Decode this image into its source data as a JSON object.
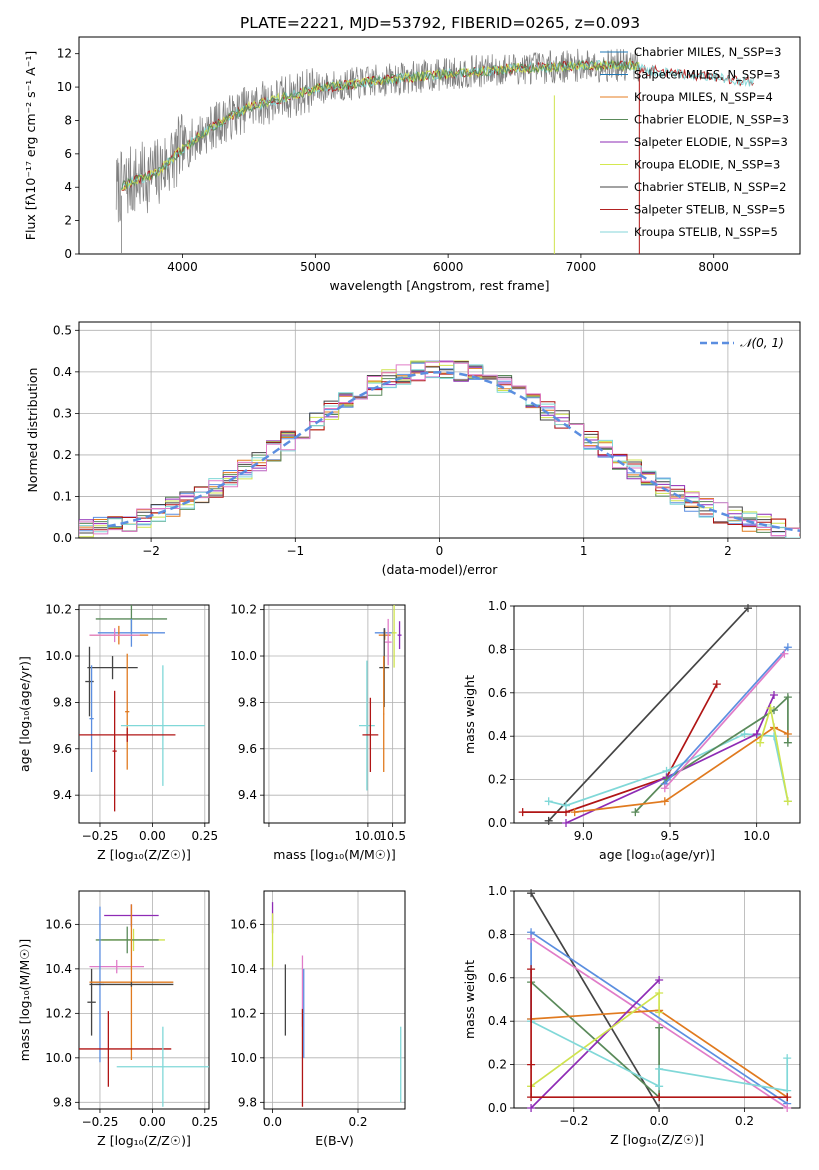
{
  "figure_title": "PLATE=2221, MJD=53792, FIBERID=0265, z=0.093",
  "series_legend": [
    {
      "name": "Chabrier MILES, N_SSP=3",
      "color": "#1f77b4"
    },
    {
      "name": "Salpeter MILES, N_SSP=3",
      "color": "#1f77b4"
    },
    {
      "name": "Kroupa MILES, N_SSP=4",
      "color": "#e67e22"
    },
    {
      "name": "Chabrier ELODIE, N_SSP=3",
      "color": "#5a8a5a"
    },
    {
      "name": "Salpeter ELODIE, N_SSP=3",
      "color": "#8e2bb5"
    },
    {
      "name": "Kroupa ELODIE, N_SSP=3",
      "color": "#d4e84f"
    },
    {
      "name": "Chabrier STELIB, N_SSP=2",
      "color": "#444444"
    },
    {
      "name": "Salpeter STELIB, N_SSP=5",
      "color": "#b22222"
    },
    {
      "name": "Kroupa STELIB, N_SSP=5",
      "color": "#85d5d8"
    }
  ],
  "colors": {
    "blue": "#5b8ee0",
    "orange": "#e07a1f",
    "green": "#5a8a5a",
    "purple": "#8e2bb5",
    "yellow": "#cfe34f",
    "dark": "#444444",
    "red": "#b01515",
    "cyan": "#80d8d8",
    "pink": "#e07cc8",
    "gray": "#7f7f7f",
    "normal": "#5b8ee0"
  },
  "chart_data": [
    {
      "type": "line",
      "title": "PLATE=2221, MJD=53792, FIBERID=0265, z=0.093",
      "xlabel": "wavelength [Angstrom, rest frame]",
      "ylabel": "Flux [fλ10⁻¹⁷ erg cm⁻² s⁻¹ A⁻¹]",
      "xlim": [
        3220,
        8650
      ],
      "ylim": [
        0,
        13
      ],
      "xticks": [
        4000,
        5000,
        6000,
        7000,
        8000
      ],
      "yticks": [
        0,
        2,
        4,
        6,
        8,
        10,
        12
      ],
      "continuum": {
        "x": [
          3500,
          3600,
          3800,
          4000,
          4200,
          4500,
          5000,
          5500,
          6000,
          6500,
          7000,
          7400,
          7500,
          8000,
          8300
        ],
        "y": [
          3.8,
          4.3,
          4.8,
          6.3,
          7.5,
          8.8,
          9.9,
          10.4,
          10.8,
          11.1,
          11.3,
          11.3,
          11.0,
          10.6,
          10.3
        ]
      },
      "data_range": [
        3500,
        7440
      ],
      "model_range": [
        3540,
        8300
      ],
      "legend_location": "upper right"
    },
    {
      "type": "histogram",
      "xlabel": "(data-model)/error",
      "ylabel": "Normed distribution",
      "xlim": [
        -2.5,
        2.5
      ],
      "ylim": [
        0,
        0.52
      ],
      "xticks": [
        -2,
        -1,
        0,
        1,
        2
      ],
      "yticks": [
        0,
        0.1,
        0.2,
        0.3,
        0.4,
        0.5
      ],
      "bin_width": 0.1,
      "normal_label": "𝒩(0, 1)",
      "grid": true
    },
    {
      "type": "scatter",
      "name": "age-vs-Z",
      "xlabel": "Z [log₁₀(Z/Z☉)]",
      "ylabel": "age  [log₁₀(age/yr)]",
      "xlim": [
        -0.35,
        0.27
      ],
      "ylim": [
        9.28,
        10.22
      ],
      "xticks": [
        -0.25,
        0,
        0.25
      ],
      "xticklabels": [
        "−0.25",
        "0.00",
        "0.25"
      ],
      "yticks": [
        9.4,
        9.6,
        9.8,
        10.0,
        10.2
      ],
      "yticklabels": [
        "9.4",
        "9.6",
        "9.8",
        "10.0",
        "10.2"
      ],
      "points": [
        {
          "c": "green",
          "x": -0.1,
          "y": 10.16,
          "xerr": 0.17,
          "yerr": 0.06
        },
        {
          "c": "blue",
          "x": -0.1,
          "y": 10.1,
          "xerr": 0.16,
          "yerr": 0.06
        },
        {
          "c": "orange",
          "x": -0.16,
          "y": 10.09,
          "xerr": 0.14,
          "yerr": 0.04
        },
        {
          "c": "pink",
          "x": -0.18,
          "y": 10.09,
          "xerr": 0.12,
          "yerr": 0.03
        },
        {
          "c": "dark",
          "x": -0.19,
          "y": 9.95,
          "xerr": 0.12,
          "yerr": 0.05
        },
        {
          "c": "dark",
          "x": -0.3,
          "y": 9.89,
          "xerr": 0.02,
          "yerr": 0.15
        },
        {
          "c": "blue",
          "x": -0.29,
          "y": 9.73,
          "xerr": 0.01,
          "yerr": 0.23
        },
        {
          "c": "orange",
          "x": -0.12,
          "y": 9.76,
          "xerr": 0.01,
          "yerr": 0.25
        },
        {
          "c": "cyan",
          "x": 0.05,
          "y": 9.7,
          "xerr": 0.2,
          "yerr": 0.26
        },
        {
          "c": "red",
          "x": -0.12,
          "y": 9.66,
          "xerr": 0.23,
          "yerr": 0.03
        },
        {
          "c": "red",
          "x": -0.18,
          "y": 9.59,
          "xerr": 0.01,
          "yerr": 0.26
        }
      ]
    },
    {
      "type": "scatter",
      "name": "age-vs-mass",
      "xlabel": "mass [log₁₀(M/M☉)]",
      "ylabel": "",
      "xlim": [
        7.9,
        10.75
      ],
      "ylim": [
        9.28,
        10.22
      ],
      "xticks": [
        8,
        10,
        10.5
      ],
      "xticklabels": [
        "",
        "10.0",
        "10.5"
      ],
      "yticks": [
        9.4,
        9.6,
        9.8,
        10.0,
        10.2
      ],
      "yticklabels": [
        "9.4",
        "9.6",
        "9.8",
        "10.0",
        "10.2"
      ],
      "points": [
        {
          "c": "blue",
          "x": 10.34,
          "y": 10.1,
          "xerr": 0.2,
          "yerr": 0.02
        },
        {
          "c": "orange",
          "x": 10.34,
          "y": 10.09,
          "xerr": 0.12,
          "yerr": 0.02
        },
        {
          "c": "pink",
          "x": 10.41,
          "y": 10.06,
          "xerr": 0.07,
          "yerr": 0.1
        },
        {
          "c": "yellow",
          "x": 10.53,
          "y": 10.1,
          "xerr": 0.05,
          "yerr": 0.15
        },
        {
          "c": "purple",
          "x": 10.64,
          "y": 10.09,
          "xerr": 0.04,
          "yerr": 0.06
        },
        {
          "c": "dark",
          "x": 10.33,
          "y": 9.95,
          "xerr": 0.1,
          "yerr": 0.17
        },
        {
          "c": "cyan",
          "x": 9.98,
          "y": 9.7,
          "xerr": 0.16,
          "yerr": 0.28
        },
        {
          "c": "red",
          "x": 10.05,
          "y": 9.66,
          "xerr": 0.16,
          "yerr": 0.16
        },
        {
          "c": "orange",
          "x": 10.32,
          "y": 9.75,
          "xerr": 0.01,
          "yerr": 0.25
        }
      ]
    },
    {
      "type": "line",
      "name": "weight-vs-age",
      "xlabel": "age  [log₁₀(age/yr)]",
      "ylabel": "mass weight",
      "xlim": [
        8.6,
        10.25
      ],
      "ylim": [
        0,
        1
      ],
      "xticks": [
        9.0,
        9.5,
        10.0
      ],
      "xticklabels": [
        "9.0",
        "9.5",
        "10.0"
      ],
      "yticks": [
        0,
        0.2,
        0.4,
        0.6,
        0.8,
        1.0
      ],
      "series": [
        {
          "c": "dark",
          "x": [
            8.8,
            9.95
          ],
          "y": [
            0.01,
            0.99
          ]
        },
        {
          "c": "red",
          "x": [
            8.65,
            8.9,
            9.48,
            9.77
          ],
          "y": [
            0.05,
            0.05,
            0.21,
            0.64
          ]
        },
        {
          "c": "cyan",
          "x": [
            8.8,
            8.9,
            9.48,
            9.93,
            10.1,
            10.18
          ],
          "y": [
            0.1,
            0.08,
            0.24,
            0.41,
            0.4,
            0.1
          ]
        },
        {
          "c": "purple",
          "x": [
            8.9,
            9.48,
            10.0,
            10.1
          ],
          "y": [
            0.0,
            0.21,
            0.41,
            0.59
          ]
        },
        {
          "c": "green",
          "x": [
            9.3,
            9.48,
            10.1,
            10.18,
            10.18
          ],
          "y": [
            0.05,
            0.2,
            0.52,
            0.58,
            0.37
          ]
        },
        {
          "c": "blue",
          "x": [
            9.47,
            10.18
          ],
          "y": [
            0.18,
            0.81
          ]
        },
        {
          "c": "pink",
          "x": [
            9.47,
            10.16
          ],
          "y": [
            0.16,
            0.78
          ]
        },
        {
          "c": "orange",
          "x": [
            8.95,
            9.47,
            10.1,
            10.18
          ],
          "y": [
            0.05,
            0.1,
            0.44,
            0.41
          ]
        },
        {
          "c": "yellow",
          "x": [
            10.02,
            10.08,
            10.18
          ],
          "y": [
            0.37,
            0.53,
            0.1
          ]
        }
      ]
    },
    {
      "type": "scatter",
      "name": "mass-vs-Z",
      "xlabel": "Z [log₁₀(Z/Z☉)]",
      "ylabel": "mass [log₁₀(M/M☉)]",
      "xlim": [
        -0.35,
        0.27
      ],
      "ylim": [
        9.77,
        10.75
      ],
      "xticks": [
        -0.25,
        0,
        0.25
      ],
      "xticklabels": [
        "−0.25",
        "0.00",
        "0.25"
      ],
      "yticks": [
        9.8,
        10.0,
        10.2,
        10.4,
        10.6
      ],
      "yticklabels": [
        "9.8",
        "10.0",
        "10.2",
        "10.4",
        "10.6"
      ],
      "points": [
        {
          "c": "purple",
          "x": -0.1,
          "y": 10.64,
          "xerr": 0.13,
          "yerr": 0.05
        },
        {
          "c": "yellow",
          "x": -0.09,
          "y": 10.53,
          "xerr": 0.15,
          "yerr": 0.05
        },
        {
          "c": "green",
          "x": -0.12,
          "y": 10.53,
          "xerr": 0.15,
          "yerr": 0.06
        },
        {
          "c": "pink",
          "x": -0.17,
          "y": 10.41,
          "xerr": 0.13,
          "yerr": 0.03
        },
        {
          "c": "dark",
          "x": -0.29,
          "y": 10.25,
          "xerr": 0.02,
          "yerr": 0.15
        },
        {
          "c": "blue",
          "x": -0.25,
          "y": 10.33,
          "xerr": 0.02,
          "yerr": 0.35
        },
        {
          "c": "orange",
          "x": -0.1,
          "y": 10.34,
          "xerr": 0.2,
          "yerr": 0.35
        },
        {
          "c": "dark",
          "x": -0.1,
          "y": 10.33,
          "xerr": 0.2,
          "yerr": 0.01
        },
        {
          "c": "red",
          "x": -0.21,
          "y": 10.04,
          "xerr": 0.3,
          "yerr": 0.17
        },
        {
          "c": "cyan",
          "x": 0.05,
          "y": 9.96,
          "xerr": 0.22,
          "yerr": 0.18
        }
      ]
    },
    {
      "type": "scatter",
      "name": "mass-vs-EBV",
      "xlabel": "E(B-V)",
      "ylabel": "",
      "xlim": [
        -0.02,
        0.31
      ],
      "ylim": [
        9.77,
        10.75
      ],
      "xticks": [
        0,
        0.2
      ],
      "xticklabels": [
        "0.0",
        "0.2"
      ],
      "yticks": [
        9.8,
        10.0,
        10.2,
        10.4,
        10.6
      ],
      "yticklabels": [
        "9.8",
        "10.0",
        "10.2",
        "10.4",
        "10.6"
      ],
      "points": [
        {
          "c": "purple",
          "x": 0.0,
          "y": 10.63,
          "xerr": 0,
          "yerr": 0.07
        },
        {
          "c": "yellow",
          "x": 0.0,
          "y": 10.53,
          "xerr": 0,
          "yerr": 0.12
        },
        {
          "c": "dark",
          "x": 0.03,
          "y": 10.26,
          "xerr": 0,
          "yerr": 0.16
        },
        {
          "c": "pink",
          "x": 0.07,
          "y": 10.3,
          "xerr": 0,
          "yerr": 0.16
        },
        {
          "c": "red",
          "x": 0.07,
          "y": 10.0,
          "xerr": 0,
          "yerr": 0.22
        },
        {
          "c": "blue",
          "x": 0.073,
          "y": 10.2,
          "xerr": 0,
          "yerr": 0.2
        },
        {
          "c": "cyan",
          "x": 0.3,
          "y": 9.97,
          "xerr": 0,
          "yerr": 0.17
        }
      ]
    },
    {
      "type": "line",
      "name": "weight-vs-Z",
      "xlabel": "Z [log₁₀(Z/Z☉)]",
      "ylabel": "mass weight",
      "xlim": [
        -0.34,
        0.33
      ],
      "ylim": [
        0,
        1
      ],
      "xticks": [
        -0.2,
        0.0,
        0.2
      ],
      "xticklabels": [
        "−0.2",
        "0.0",
        "0.2"
      ],
      "yticks": [
        0,
        0.2,
        0.4,
        0.6,
        0.8,
        1.0
      ],
      "series": [
        {
          "c": "dark",
          "x": [
            -0.3,
            0.0
          ],
          "y": [
            0.99,
            0.0
          ]
        },
        {
          "c": "blue",
          "x": [
            -0.3,
            -0.3,
            0.3
          ],
          "y": [
            0.41,
            0.81,
            0.02
          ]
        },
        {
          "c": "pink",
          "x": [
            -0.3,
            0.3
          ],
          "y": [
            0.78,
            0.0
          ]
        },
        {
          "c": "green",
          "x": [
            -0.3,
            0.0,
            0.0
          ],
          "y": [
            0.58,
            0.05,
            0.37
          ]
        },
        {
          "c": "orange",
          "x": [
            -0.3,
            0.0,
            0.3
          ],
          "y": [
            0.41,
            0.45,
            0.05
          ]
        },
        {
          "c": "purple",
          "x": [
            -0.3,
            0.0
          ],
          "y": [
            0.0,
            0.59
          ]
        },
        {
          "c": "yellow",
          "x": [
            -0.3,
            0.0,
            0.0
          ],
          "y": [
            0.1,
            0.53,
            0.44
          ]
        },
        {
          "c": "cyan",
          "x": [
            -0.3,
            0.0,
            0.0,
            0.3,
            0.3
          ],
          "y": [
            0.4,
            0.1,
            0.18,
            0.08,
            0.23
          ]
        },
        {
          "c": "red",
          "x": [
            -0.3,
            -0.3,
            -0.3,
            0.0,
            0.3
          ],
          "y": [
            0.64,
            0.2,
            0.05,
            0.05,
            0.05
          ]
        }
      ]
    }
  ]
}
